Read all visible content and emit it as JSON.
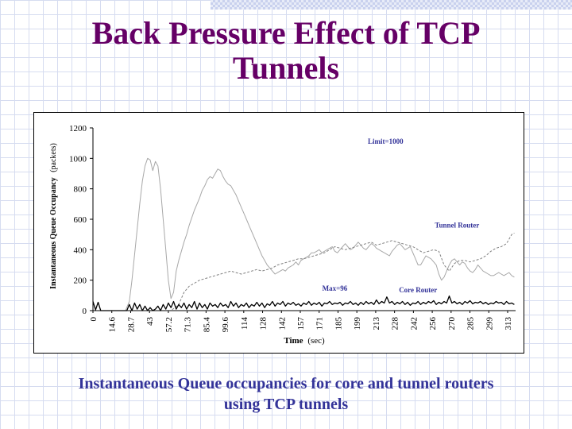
{
  "slide": {
    "title_line1": "Back Pressure Effect of TCP",
    "title_line2": "Tunnels",
    "caption_line1": "Instantaneous Queue occupancies for core and tunnel routers",
    "caption_line2": "using TCP tunnels"
  },
  "chart_data": {
    "type": "line",
    "ylabel_main": "Instantaneous Queue Occupancy",
    "ylabel_unit": "(packets)",
    "xlabel_main": "Time",
    "xlabel_unit": "(sec)",
    "xlim": [
      0,
      325
    ],
    "ylim": [
      0,
      1200
    ],
    "yticks": [
      0,
      200,
      400,
      600,
      800,
      1000,
      1200
    ],
    "xtick_labels": [
      "0",
      "14.6",
      "28.7",
      "43",
      "57.2",
      "71.3",
      "85.4",
      "99.6",
      "114",
      "128",
      "142",
      "157",
      "171",
      "185",
      "199",
      "213",
      "228",
      "242",
      "256",
      "270",
      "285",
      "299",
      "313"
    ],
    "annotations": [
      {
        "text": "Limit=1000",
        "x": 225,
        "y": 1095
      },
      {
        "text": "Tunnel Router",
        "x": 280,
        "y": 545
      },
      {
        "text": "Max=96",
        "x": 186,
        "y": 130
      },
      {
        "text": "Core Router",
        "x": 250,
        "y": 120
      }
    ],
    "series": [
      {
        "name": "Tunnel Router",
        "color": "#a8a8a8",
        "x": [
          0,
          10,
          20,
          25,
          28,
          30,
          33,
          36,
          38,
          40,
          42,
          44,
          46,
          48,
          50,
          52,
          54,
          56,
          58,
          60,
          62,
          64,
          66,
          68,
          70,
          72,
          74,
          76,
          78,
          80,
          82,
          84,
          86,
          88,
          90,
          92,
          94,
          96,
          98,
          100,
          102,
          104,
          106,
          108,
          110,
          112,
          114,
          116,
          118,
          120,
          122,
          124,
          126,
          128,
          130,
          132,
          134,
          136,
          138,
          140,
          142,
          144,
          146,
          148,
          150,
          152,
          154,
          156,
          158,
          160,
          162,
          164,
          166,
          168,
          170,
          172,
          174,
          176,
          178,
          180,
          182,
          184,
          186,
          188,
          190,
          192,
          194,
          196,
          198,
          200,
          202,
          204,
          206,
          208,
          210,
          212,
          214,
          216,
          218,
          220,
          222,
          224,
          226,
          228,
          230,
          232,
          234,
          236,
          238,
          240,
          242,
          244,
          246,
          248,
          250,
          252,
          254,
          256,
          258,
          260,
          262,
          264,
          266,
          268,
          270,
          272,
          274,
          276,
          278,
          280,
          282,
          284,
          286,
          288,
          290,
          292,
          294,
          296,
          298,
          300,
          302,
          304,
          306,
          308,
          310,
          312,
          314,
          316,
          318,
          320,
          322,
          324
        ],
        "y": [
          0,
          0,
          0,
          0,
          60,
          200,
          450,
          700,
          850,
          950,
          1000,
          990,
          920,
          980,
          950,
          800,
          600,
          400,
          200,
          80,
          120,
          260,
          330,
          390,
          450,
          500,
          560,
          610,
          660,
          700,
          740,
          790,
          820,
          860,
          880,
          870,
          900,
          930,
          920,
          880,
          850,
          830,
          820,
          790,
          760,
          720,
          680,
          640,
          600,
          560,
          520,
          480,
          440,
          400,
          360,
          330,
          300,
          280,
          260,
          240,
          250,
          260,
          270,
          260,
          280,
          290,
          300,
          320,
          300,
          330,
          340,
          350,
          360,
          380,
          380,
          390,
          400,
          380,
          390,
          400,
          410,
          420,
          390,
          380,
          400,
          420,
          440,
          420,
          400,
          410,
          430,
          450,
          430,
          410,
          400,
          420,
          440,
          430,
          410,
          400,
          390,
          380,
          370,
          360,
          390,
          410,
          430,
          440,
          420,
          400,
          410,
          420,
          380,
          340,
          300,
          300,
          330,
          360,
          350,
          340,
          320,
          300,
          240,
          200,
          220,
          260,
          300,
          330,
          340,
          320,
          300,
          320,
          310,
          280,
          260,
          250,
          270,
          300,
          280,
          260,
          250,
          240,
          230,
          230,
          240,
          250,
          240,
          230,
          240,
          250,
          230,
          220
        ]
      },
      {
        "name": "Unlabeled dashed series",
        "color": "#808080",
        "x": [
          0,
          10,
          20,
          40,
          60,
          66,
          70,
          74,
          78,
          82,
          86,
          90,
          94,
          98,
          102,
          106,
          110,
          114,
          118,
          122,
          126,
          130,
          134,
          138,
          142,
          146,
          150,
          154,
          158,
          162,
          166,
          170,
          174,
          178,
          182,
          186,
          190,
          194,
          198,
          202,
          206,
          210,
          214,
          218,
          222,
          226,
          230,
          234,
          238,
          242,
          246,
          250,
          254,
          258,
          262,
          266,
          270,
          274,
          278,
          282,
          286,
          290,
          294,
          298,
          302,
          306,
          310,
          314,
          318,
          322,
          324
        ],
        "y": [
          0,
          0,
          0,
          0,
          0,
          40,
          120,
          160,
          180,
          200,
          210,
          220,
          230,
          240,
          250,
          260,
          250,
          240,
          250,
          260,
          270,
          260,
          270,
          280,
          300,
          310,
          320,
          330,
          340,
          340,
          350,
          360,
          370,
          380,
          400,
          420,
          410,
          400,
          410,
          420,
          430,
          440,
          450,
          430,
          440,
          450,
          460,
          450,
          440,
          430,
          420,
          400,
          380,
          390,
          400,
          390,
          300,
          260,
          310,
          330,
          330,
          320,
          330,
          340,
          360,
          390,
          410,
          420,
          440,
          500,
          510
        ]
      },
      {
        "name": "Core Router",
        "color": "#000000",
        "x": [
          0,
          2,
          4,
          6,
          8,
          10,
          12,
          14,
          16,
          18,
          20,
          22,
          24,
          26,
          28,
          30,
          32,
          34,
          36,
          38,
          40,
          42,
          44,
          46,
          48,
          50,
          52,
          54,
          56,
          58,
          60,
          62,
          64,
          66,
          68,
          70,
          72,
          74,
          76,
          78,
          80,
          82,
          84,
          86,
          88,
          90,
          92,
          94,
          96,
          98,
          100,
          102,
          104,
          106,
          108,
          110,
          112,
          114,
          116,
          118,
          120,
          122,
          124,
          126,
          128,
          130,
          132,
          134,
          136,
          138,
          140,
          142,
          144,
          146,
          148,
          150,
          152,
          154,
          156,
          158,
          160,
          162,
          164,
          166,
          168,
          170,
          172,
          174,
          176,
          178,
          180,
          182,
          184,
          186,
          188,
          190,
          192,
          194,
          196,
          198,
          200,
          202,
          204,
          206,
          208,
          210,
          212,
          214,
          216,
          218,
          220,
          222,
          224,
          226,
          228,
          230,
          232,
          234,
          236,
          238,
          240,
          242,
          244,
          246,
          248,
          250,
          252,
          254,
          256,
          258,
          260,
          262,
          264,
          266,
          268,
          270,
          272,
          274,
          276,
          278,
          280,
          282,
          284,
          286,
          288,
          290,
          292,
          294,
          296,
          298,
          300,
          302,
          304,
          306,
          308,
          310,
          312,
          314,
          316,
          318,
          320,
          322,
          324
        ],
        "y": [
          60,
          5,
          55,
          0,
          0,
          0,
          0,
          0,
          0,
          0,
          0,
          0,
          0,
          0,
          40,
          0,
          50,
          10,
          40,
          0,
          30,
          0,
          20,
          0,
          10,
          30,
          0,
          40,
          10,
          50,
          20,
          60,
          10,
          40,
          20,
          50,
          10,
          40,
          20,
          60,
          10,
          50,
          20,
          40,
          10,
          50,
          30,
          40,
          20,
          50,
          30,
          40,
          20,
          60,
          30,
          50,
          20,
          40,
          30,
          50,
          20,
          40,
          30,
          55,
          30,
          50,
          20,
          45,
          35,
          60,
          30,
          50,
          40,
          60,
          30,
          50,
          40,
          55,
          35,
          45,
          30,
          50,
          40,
          60,
          35,
          50,
          40,
          55,
          30,
          50,
          45,
          60,
          40,
          50,
          45,
          55,
          35,
          50,
          45,
          60,
          40,
          50,
          35,
          55,
          40,
          60,
          45,
          55,
          40,
          70,
          45,
          60,
          50,
          90,
          50,
          60,
          40,
          55,
          45,
          60,
          40,
          55,
          35,
          50,
          45,
          60,
          40,
          55,
          45,
          60,
          50,
          65,
          40,
          55,
          45,
          60,
          50,
          96,
          50,
          60,
          45,
          55,
          40,
          60,
          50,
          65,
          45,
          55,
          50,
          60,
          45,
          55,
          40,
          50,
          45,
          60,
          50,
          55,
          40,
          60,
          45,
          50,
          40
        ]
      }
    ]
  }
}
